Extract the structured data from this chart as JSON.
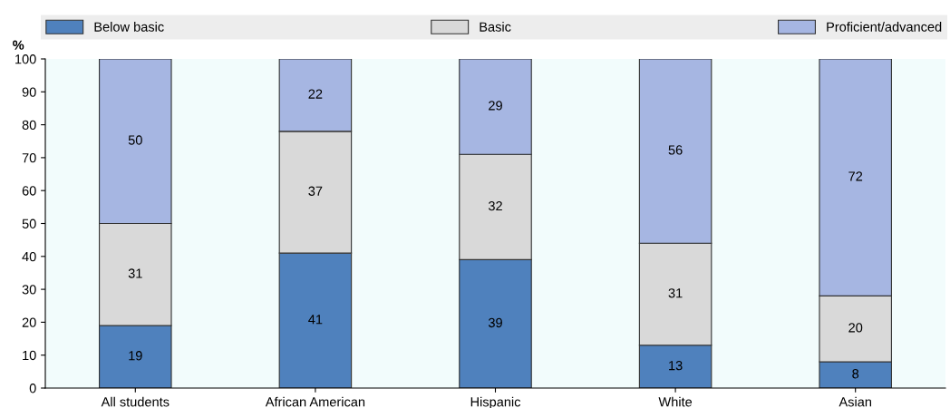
{
  "chart_data": {
    "type": "bar",
    "stacked": true,
    "ylabel": "%",
    "categories": [
      "All students",
      "African American",
      "Hispanic",
      "White",
      "Asian"
    ],
    "series": [
      {
        "name": "Below basic",
        "color": "#4f81bd",
        "values": [
          19,
          41,
          39,
          13,
          8
        ]
      },
      {
        "name": "Basic",
        "color": "#d9d9d9",
        "values": [
          31,
          37,
          32,
          31,
          20
        ]
      },
      {
        "name": "Proficient/advanced",
        "color": "#a6b6e2",
        "values": [
          50,
          22,
          29,
          56,
          72
        ]
      }
    ],
    "ylim": [
      0,
      100
    ],
    "yticks": [
      0,
      10,
      20,
      30,
      40,
      50,
      60,
      70,
      80,
      90,
      100
    ],
    "data_labels": true,
    "legend": "top",
    "grid": false
  }
}
